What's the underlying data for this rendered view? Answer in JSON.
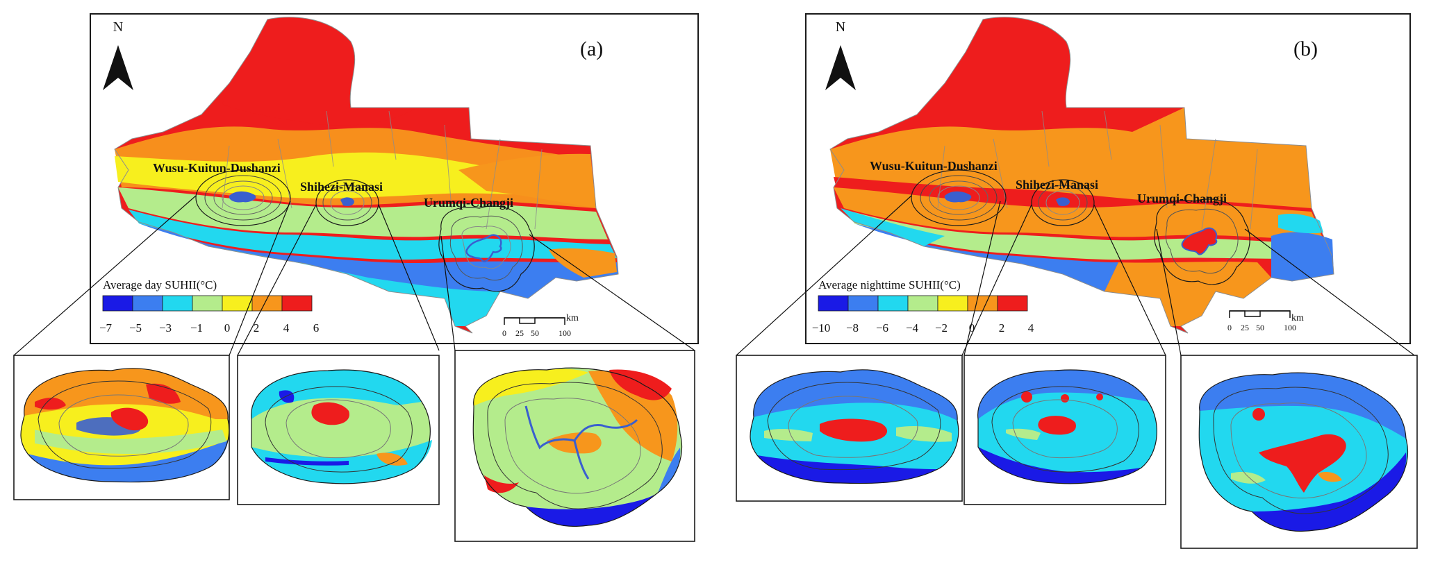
{
  "palette": {
    "blue": "#1a1ae6",
    "lightblue": "#3c7ef0",
    "cyan": "#22d8ef",
    "green": "#b4ec8c",
    "yellow": "#f7ef1e",
    "orange": "#f7961c",
    "red": "#ee1d1d",
    "outline": "#1a1a1a",
    "boundary": "#8c8c8c",
    "urban": "#3a5fcf"
  },
  "panels": [
    {
      "id": "a",
      "label": "(a)",
      "north": "N",
      "legend_title": "Average day SUHII(°C)",
      "legend_ticks": [
        "−7",
        "−5",
        "−3",
        "−1",
        "0",
        "2",
        "4",
        "6"
      ],
      "scale_ticks": [
        "0",
        "25",
        "50",
        "100"
      ],
      "scale_unit": "km",
      "cities": [
        "Wusu-Kuitun-Dushanzi",
        "Shihezi-Manasi",
        "Urumqi-Changji"
      ],
      "insets": [
        "Wusu-Kuitun-Dushanzi",
        "Shihezi-Manasi",
        "Urumqi-Changji"
      ]
    },
    {
      "id": "b",
      "label": "(b)",
      "north": "N",
      "legend_title": "Average nighttime SUHII(°C)",
      "legend_ticks": [
        "−10",
        "−8",
        "−6",
        "−4",
        "−2",
        "0",
        "2",
        "4"
      ],
      "scale_ticks": [
        "0",
        "25",
        "50",
        "100"
      ],
      "scale_unit": "km",
      "cities": [
        "Wusu-Kuitun-Dushanzi",
        "Shihezi-Manasi",
        "Urumqi-Changji"
      ],
      "insets": [
        "Wusu-Kuitun-Dushanzi",
        "Shihezi-Manasi",
        "Urumqi-Changji"
      ]
    }
  ]
}
